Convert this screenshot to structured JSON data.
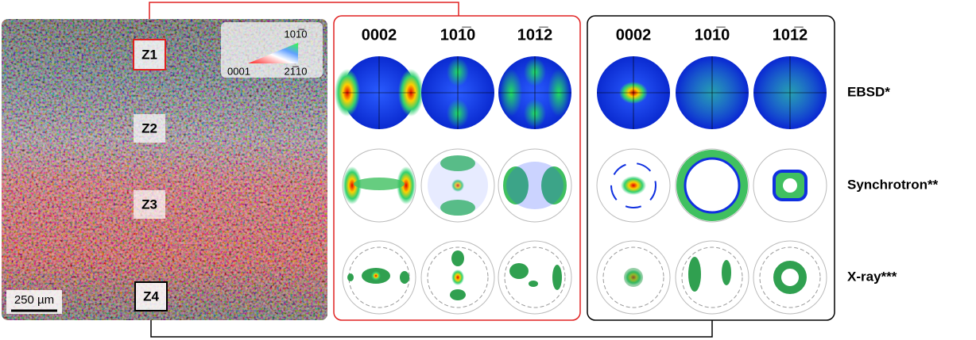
{
  "micrograph": {
    "zones": [
      "Z1",
      "Z2",
      "Z3",
      "Z4"
    ],
    "scale_bar": "250 µm",
    "legend": {
      "top": "101̅0",
      "left": "0001",
      "right": "21̅10"
    }
  },
  "panels": [
    {
      "columns": [
        "0002",
        "101̅0",
        "101̅2"
      ]
    },
    {
      "columns": [
        "0002",
        "101̅0",
        "101̅2"
      ]
    }
  ],
  "rows": [
    "EBSD*",
    "Synchrotron**",
    "X-ray***"
  ]
}
